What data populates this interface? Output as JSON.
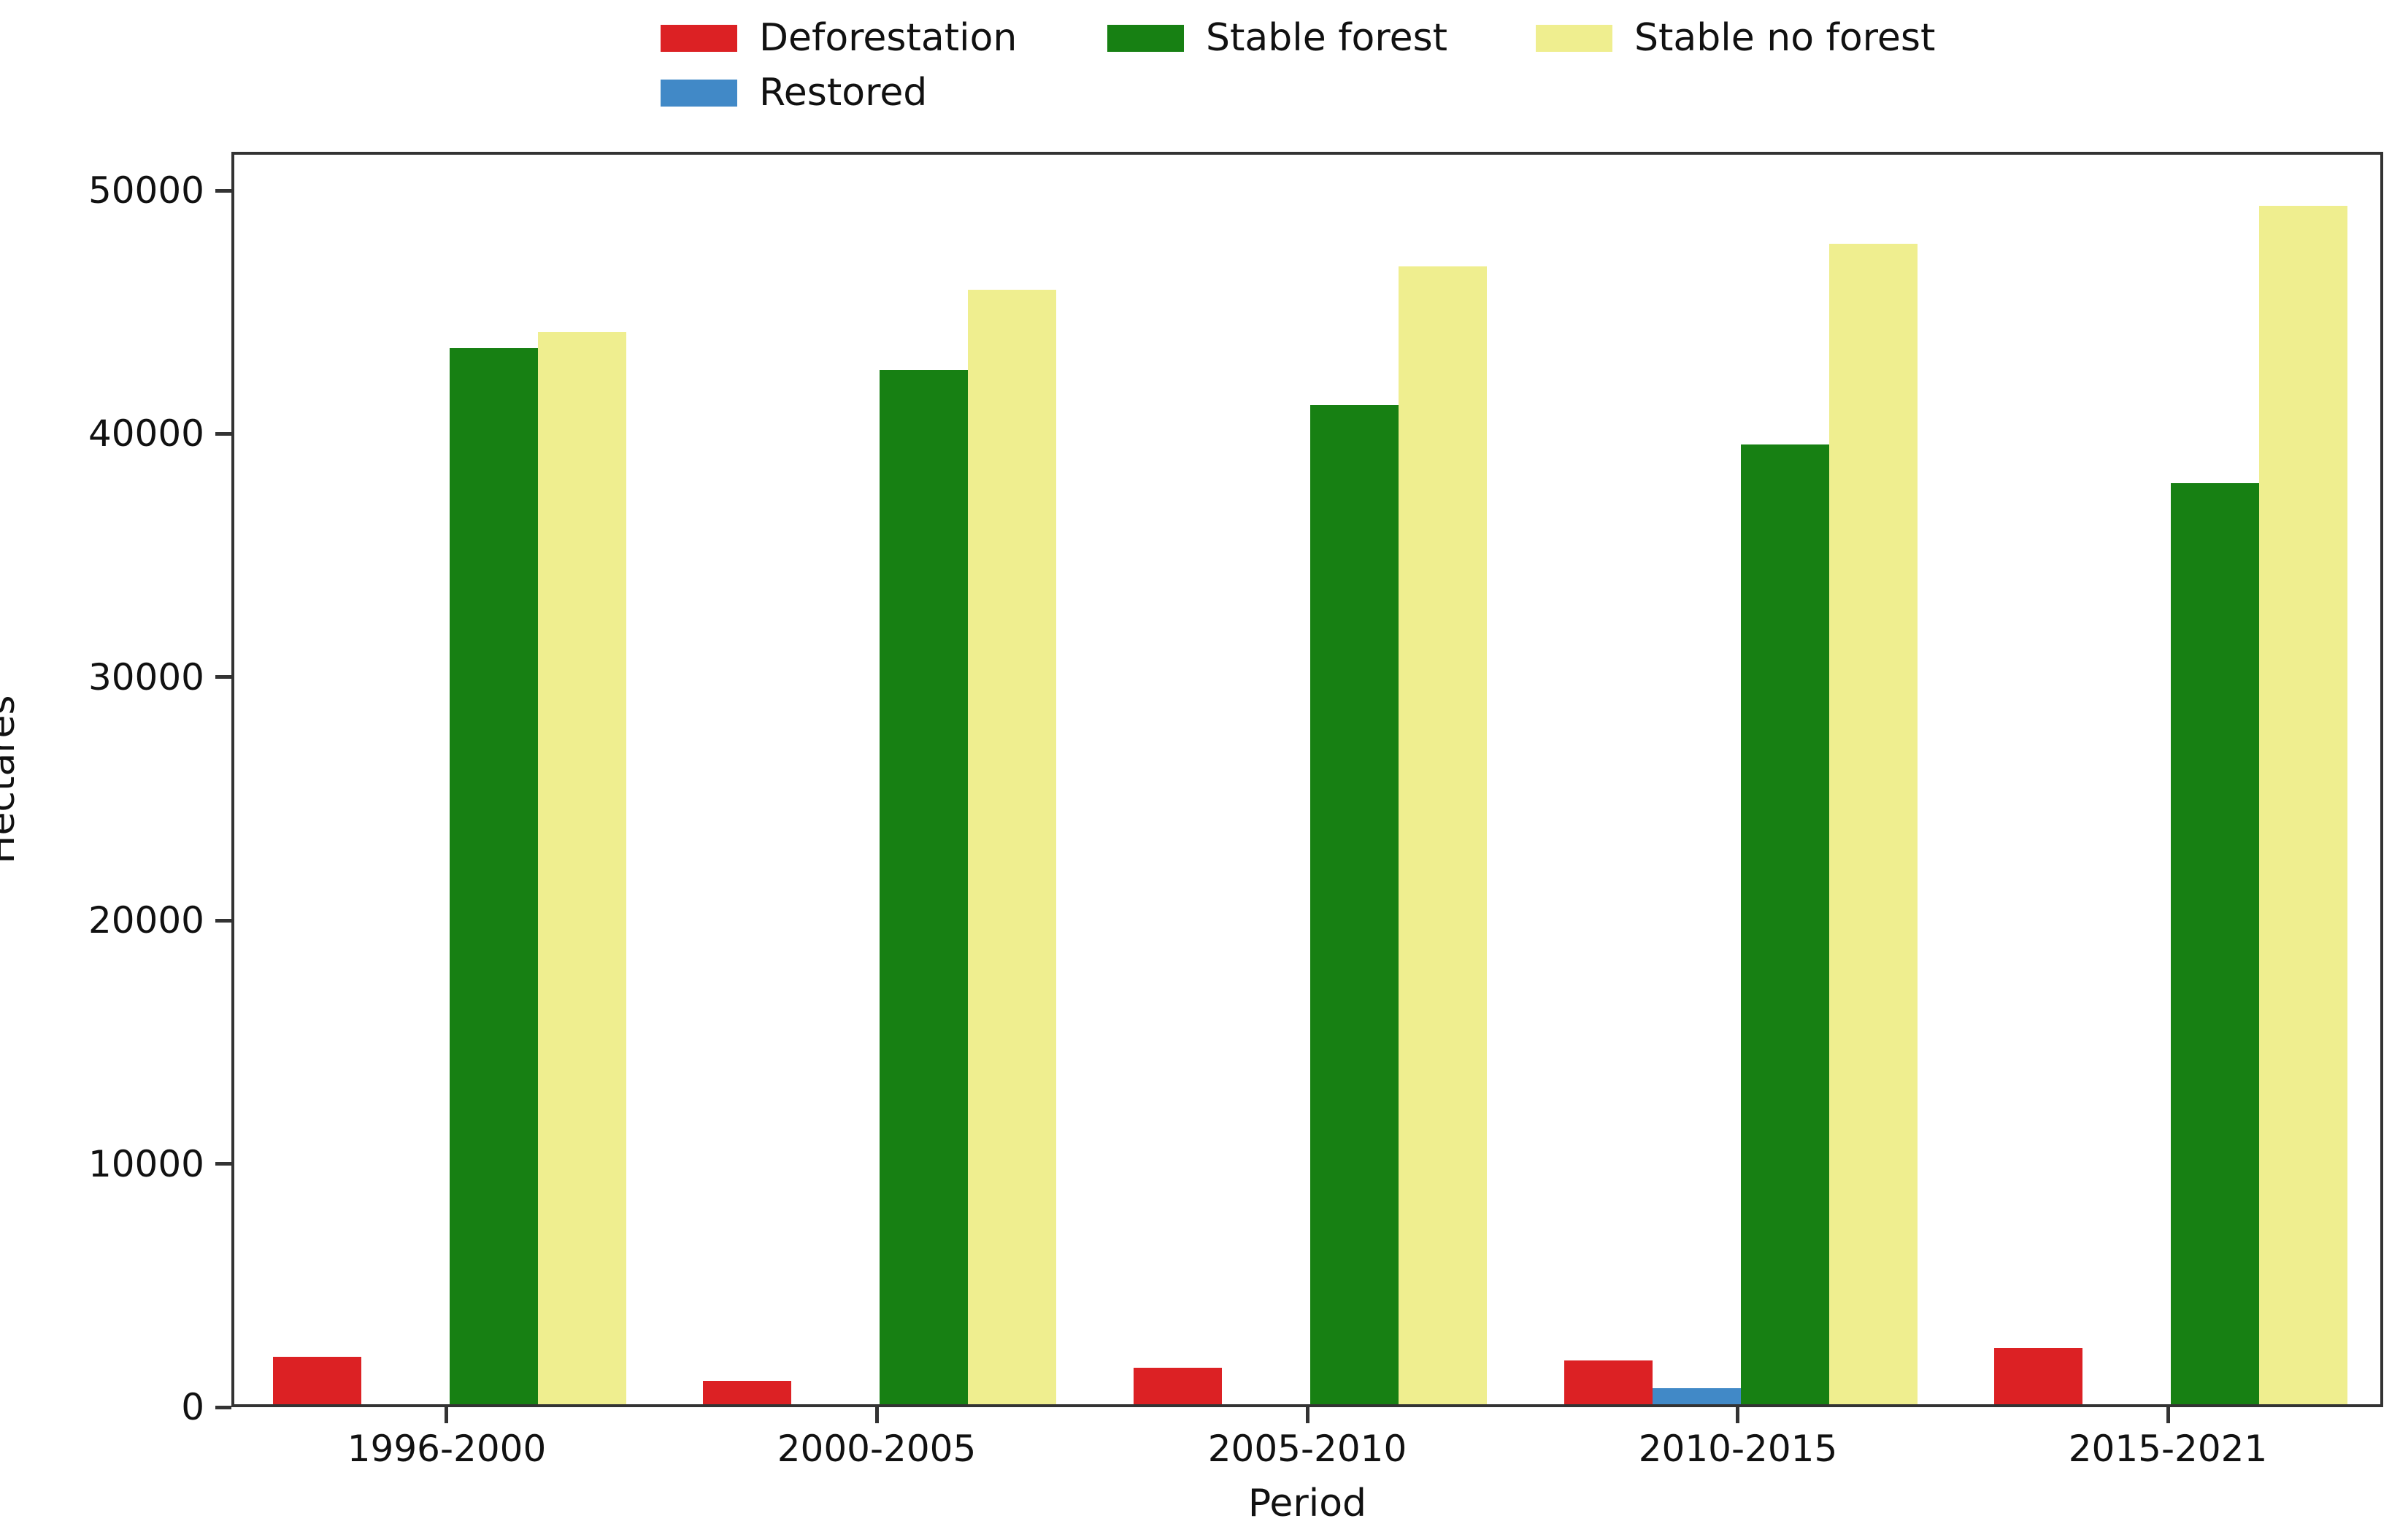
{
  "chart_data": {
    "type": "bar",
    "title": "",
    "xlabel": "Period",
    "ylabel": "Hectares",
    "categories": [
      "1996-2000",
      "2000-2005",
      "2005-2010",
      "2010-2015",
      "2015-2021"
    ],
    "series": [
      {
        "name": "Deforestation",
        "color": "#dc2124",
        "values": [
          1950,
          950,
          1500,
          1800,
          2300
        ]
      },
      {
        "name": "Restored",
        "color": "#4189c7",
        "values": [
          0,
          0,
          0,
          650,
          0
        ]
      },
      {
        "name": "Stable forest",
        "color": "#178013",
        "values": [
          43400,
          42500,
          41050,
          39450,
          37850
        ]
      },
      {
        "name": "Stable no forest",
        "color": "#efee8f",
        "values": [
          44050,
          45800,
          46750,
          47700,
          49250
        ]
      }
    ],
    "ylim": [
      0,
      51600
    ],
    "yticks": [
      0,
      10000,
      20000,
      30000,
      40000,
      50000
    ],
    "grid": false,
    "legend_position": "top",
    "legend_columns": 3
  }
}
